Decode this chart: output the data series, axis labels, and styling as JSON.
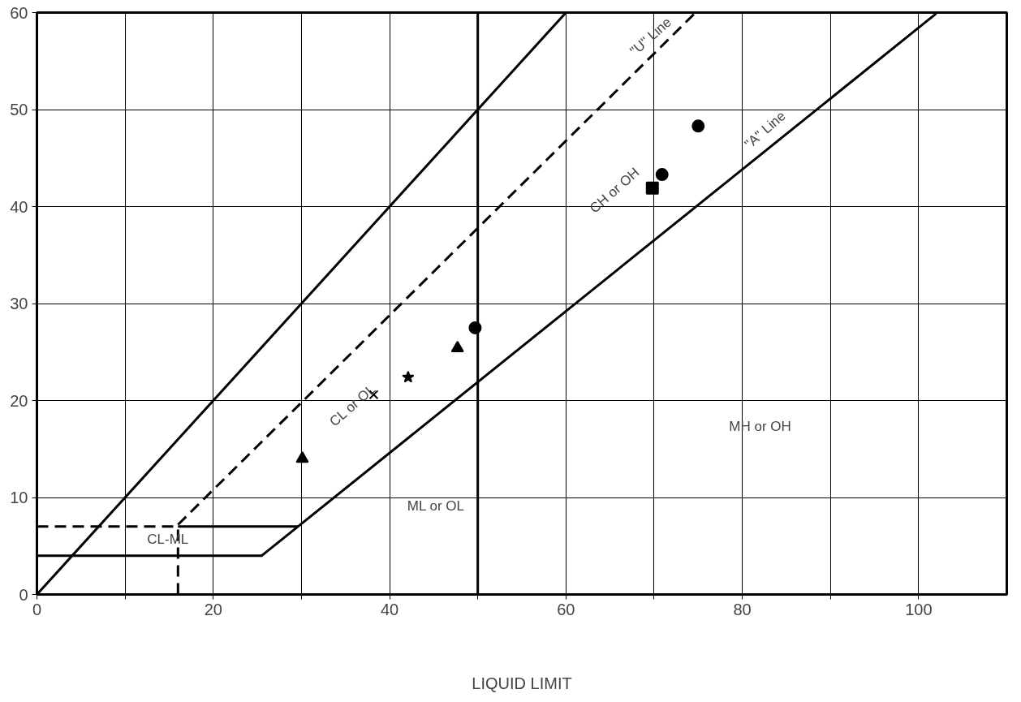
{
  "chart_data": {
    "type": "scatter",
    "xlabel": "LIQUID LIMIT",
    "xlim": [
      0,
      110
    ],
    "ylim": [
      0,
      60
    ],
    "xticks": [
      0,
      {
        "value": 10,
        "label": null
      },
      20,
      {
        "value": 30,
        "label": null
      },
      40,
      {
        "value": 50,
        "label": null
      },
      60,
      {
        "value": 70,
        "label": null
      },
      80,
      {
        "value": 90,
        "label": null
      },
      100
    ],
    "yticks": [
      0,
      10,
      20,
      30,
      40,
      50,
      60
    ],
    "grid": true,
    "series": [
      {
        "type": "line",
        "color": "#000000",
        "line_style": "solid",
        "x": [
          0,
          60
        ],
        "values": [
          0,
          60
        ]
      },
      {
        "type": "line",
        "color": "#000000",
        "line_style": "dashed",
        "x": [
          16,
          74.7
        ],
        "values": [
          7.2,
          60
        ]
      },
      {
        "type": "line",
        "color": "#000000",
        "line_style": "solid",
        "x": [
          0,
          25.5,
          29.6,
          102
        ],
        "values": [
          4,
          4,
          7,
          59.9
        ]
      },
      {
        "type": "line",
        "color": "#000000",
        "line_style": "solid",
        "x": [
          16,
          29.6
        ],
        "values": [
          7,
          7
        ]
      },
      {
        "type": "line",
        "color": "#000000",
        "line_style": "dashed",
        "x": [
          0,
          16
        ],
        "values": [
          7,
          7
        ]
      },
      {
        "type": "line",
        "color": "#000000",
        "line_style": "dashed",
        "x": [
          16,
          16
        ],
        "values": [
          0,
          7
        ]
      },
      {
        "color": "#000000",
        "marker": "circle",
        "x": [
          75
        ],
        "values": [
          48.3
        ]
      },
      {
        "color": "#000000",
        "marker": "circle",
        "x": [
          70.9
        ],
        "values": [
          43.3
        ]
      },
      {
        "color": "#000000",
        "marker": "square",
        "x": [
          69.8
        ],
        "values": [
          41.9
        ]
      },
      {
        "color": "#000000",
        "marker": "circle",
        "x": [
          49.7
        ],
        "values": [
          27.5
        ]
      },
      {
        "color": "#000000",
        "marker": "triangle",
        "x": [
          47.7
        ],
        "values": [
          25.4
        ]
      },
      {
        "color": "#000000",
        "marker": "star",
        "x": [
          42.1
        ],
        "values": [
          22.4
        ]
      },
      {
        "color": "#000000",
        "marker": "cross",
        "x": [
          38.2
        ],
        "values": [
          20.6
        ]
      },
      {
        "color": "#000000",
        "marker": "triangle",
        "x": [
          30.1
        ],
        "values": [
          14.0
        ]
      }
    ],
    "ref_lines": [
      {
        "axis": "x",
        "value": 50,
        "color": "#000000",
        "line_style": "solid"
      }
    ],
    "annotations": [
      "CL-ML",
      "ML or OL",
      "MH or OH",
      "CH or OH",
      "CL or OL",
      {
        "text": "\"U\" Line",
        "x": 69,
        "y": 54.9
      },
      {
        "text": "\"A\" Line",
        "x": 82,
        "y": 45.3
      }
    ]
  }
}
